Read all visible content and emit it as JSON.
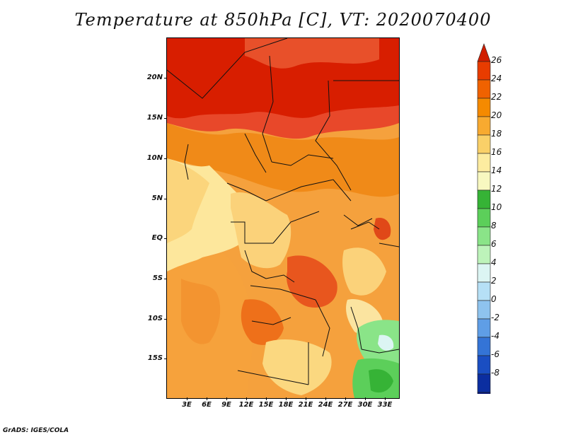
{
  "title": "Temperature at 850hPa [C], VT: 2020070400",
  "footer": "GrADS: IGES/COLA",
  "latitude_labels": [
    "20N",
    "15N",
    "10N",
    "5N",
    "EQ",
    "5S",
    "10S",
    "15S"
  ],
  "longitude_labels": [
    "3E",
    "6E",
    "9E",
    "12E",
    "15E",
    "18E",
    "21E",
    "24E",
    "27E",
    "30E",
    "33E"
  ],
  "colorbar": {
    "labels": [
      "26",
      "24",
      "22",
      "20",
      "18",
      "16",
      "14",
      "12",
      "10",
      "8",
      "6",
      "4",
      "2",
      "0",
      "-2",
      "-4",
      "-6",
      "-8"
    ],
    "colors": [
      "#d01e00",
      "#e83c00",
      "#f06200",
      "#f58a00",
      "#f8aa30",
      "#fad068",
      "#fdeca0",
      "#f8f8c0",
      "#36b336",
      "#5ccf5a",
      "#8ae488",
      "#bdf3ba",
      "#dcf5f3",
      "#b6e0f6",
      "#8ec3ee",
      "#5f9ee6",
      "#3474d6",
      "#1a4ec2",
      "#0b2ea0",
      "#081678",
      "#dcdcf4"
    ]
  },
  "legend_range": {
    "min": -8,
    "max": 26,
    "units": "C",
    "step": 2
  }
}
